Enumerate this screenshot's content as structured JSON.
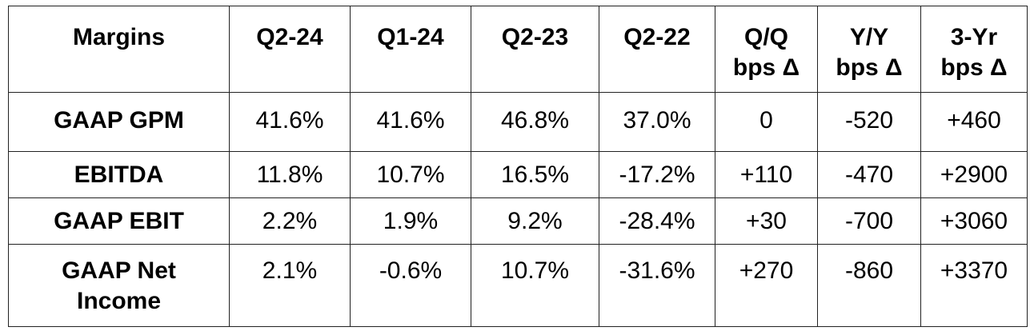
{
  "chart_data": {
    "type": "table",
    "columns": [
      "Margins",
      "Q2-24",
      "Q1-24",
      "Q2-23",
      "Q2-22",
      "Q/Q bps Δ",
      "Y/Y bps Δ",
      "3-Yr bps Δ"
    ],
    "header": [
      {
        "line1": "Margins",
        "line2": ""
      },
      {
        "line1": "Q2-24",
        "line2": ""
      },
      {
        "line1": "Q1-24",
        "line2": ""
      },
      {
        "line1": "Q2-23",
        "line2": ""
      },
      {
        "line1": "Q2-22",
        "line2": ""
      },
      {
        "line1": "Q/Q",
        "line2": "bps Δ"
      },
      {
        "line1": "Y/Y",
        "line2": "bps Δ"
      },
      {
        "line1": "3-Yr",
        "line2": "bps Δ"
      }
    ],
    "rows": [
      {
        "label1": "GAAP GPM",
        "label2": "",
        "cells": [
          "41.6%",
          "41.6%",
          "46.8%",
          "37.0%",
          "0",
          "-520",
          "+460"
        ]
      },
      {
        "label1": "EBITDA",
        "label2": "",
        "cells": [
          "11.8%",
          "10.7%",
          "16.5%",
          "-17.2%",
          "+110",
          "-470",
          "+2900"
        ]
      },
      {
        "label1": "GAAP EBIT",
        "label2": "",
        "cells": [
          "2.2%",
          "1.9%",
          "9.2%",
          "-28.4%",
          "+30",
          "-700",
          "+3060"
        ]
      },
      {
        "label1": "GAAP Net",
        "label2": "Income",
        "cells": [
          "2.1%",
          "-0.6%",
          "10.7%",
          "-31.6%",
          "+270",
          "-860",
          "+3370"
        ]
      }
    ]
  }
}
